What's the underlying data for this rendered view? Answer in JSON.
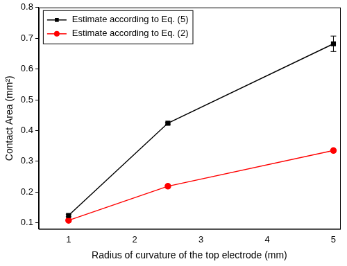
{
  "chart_data": {
    "type": "line",
    "x_label": "Radius of curvature of the top electrode (mm)",
    "y_label": "Contact Area (mm²)",
    "x": [
      1,
      2.5,
      5
    ],
    "series": [
      {
        "name": "Estimate according to Eq. (5)",
        "color": "#000000",
        "marker": "square",
        "line_style": "solid",
        "values": [
          0.124,
          0.424,
          0.682
        ],
        "errors": [
          0.004,
          0.003,
          0.025
        ]
      },
      {
        "name": "Estimate according to Eq. (2)",
        "color": "#ff0000",
        "marker": "circle",
        "line_style": "solid",
        "values": [
          0.108,
          0.219,
          0.335
        ]
      }
    ],
    "xlim": [
      0.55,
      5.1
    ],
    "xticks": [
      1,
      2,
      3,
      4,
      5
    ],
    "ylim": [
      0.08,
      0.8
    ],
    "yticks": [
      0.1,
      0.2,
      0.3,
      0.4,
      0.5,
      0.6,
      0.7,
      0.8
    ],
    "grid": false,
    "legend": "upper left"
  }
}
